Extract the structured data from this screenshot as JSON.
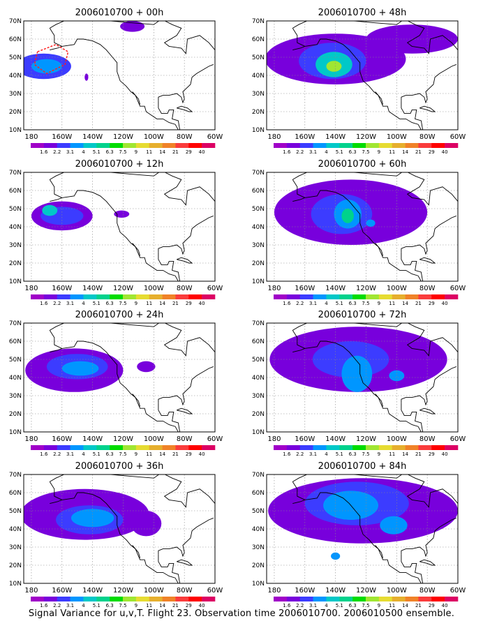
{
  "caption": "Signal Variance for u,v,T. Flight 23. Observation time 2006010700. 2006010500 ensemble.",
  "map": {
    "lat_ticks": [
      "10N",
      "20N",
      "30N",
      "40N",
      "50N",
      "60N",
      "70N"
    ],
    "lon_ticks": [
      "180",
      "160W",
      "140W",
      "120W",
      "100W",
      "80W",
      "60W"
    ],
    "lat_range": [
      10,
      70
    ],
    "lon_range": [
      -185,
      -60
    ]
  },
  "colorbar": {
    "labels": [
      "1.6",
      "2.2",
      "3.1",
      "4",
      "5.1",
      "6.3",
      "7.5",
      "9",
      "11",
      "14",
      "21",
      "29",
      "40"
    ],
    "colors": [
      "#a000c8",
      "#7800dc",
      "#3c3cff",
      "#0096ff",
      "#00c8c8",
      "#00d28c",
      "#00dc00",
      "#a0e632",
      "#e6dc32",
      "#e6af2d",
      "#f08228",
      "#fa3c3c",
      "#ff0000",
      "#dc0064"
    ]
  },
  "panels": [
    {
      "title": "2006010700 + 00h",
      "blobs": [
        {
          "lon": -172,
          "lat": 45,
          "rlon": 18,
          "rlat": 7,
          "level": 2
        },
        {
          "lon": -170,
          "lat": 45,
          "rlon": 10,
          "rlat": 4,
          "level": 3
        },
        {
          "lon": -114,
          "lat": 67,
          "rlon": 8,
          "rlat": 3,
          "level": 1
        },
        {
          "lon": -144,
          "lat": 39,
          "rlon": 1.2,
          "rlat": 2,
          "level": 1
        }
      ],
      "flight": true
    },
    {
      "title": "2006010700 + 48h",
      "blobs": [
        {
          "lon": -140,
          "lat": 49,
          "rlon": 46,
          "rlat": 14,
          "level": 1
        },
        {
          "lon": -90,
          "lat": 60,
          "rlon": 30,
          "rlat": 8,
          "level": 1
        },
        {
          "lon": -142,
          "lat": 48,
          "rlon": 22,
          "rlat": 10,
          "level": 2
        },
        {
          "lon": -141,
          "lat": 46,
          "rlon": 12,
          "rlat": 7,
          "level": 4
        },
        {
          "lon": -141,
          "lat": 45,
          "rlon": 5,
          "rlat": 3,
          "level": 7
        }
      ]
    },
    {
      "title": "2006010700 + 12h",
      "blobs": [
        {
          "lon": -160,
          "lat": 46,
          "rlon": 20,
          "rlat": 8,
          "level": 1
        },
        {
          "lon": -160,
          "lat": 46,
          "rlon": 14,
          "rlat": 5,
          "level": 2
        },
        {
          "lon": -168,
          "lat": 49,
          "rlon": 5,
          "rlat": 3,
          "level": 4
        },
        {
          "lon": -121,
          "lat": 47,
          "rlon": 5,
          "rlat": 2,
          "level": 1
        }
      ]
    },
    {
      "title": "2006010700 + 60h",
      "blobs": [
        {
          "lon": -130,
          "lat": 48,
          "rlon": 50,
          "rlat": 18,
          "level": 1
        },
        {
          "lon": -136,
          "lat": 47,
          "rlon": 20,
          "rlat": 11,
          "level": 2
        },
        {
          "lon": -132,
          "lat": 47,
          "rlon": 9,
          "rlat": 8,
          "level": 3
        },
        {
          "lon": -132,
          "lat": 46,
          "rlon": 4,
          "rlat": 4,
          "level": 5
        },
        {
          "lon": -117,
          "lat": 42,
          "rlon": 3,
          "rlat": 2,
          "level": 3
        }
      ]
    },
    {
      "title": "2006010700 + 24h",
      "blobs": [
        {
          "lon": -152,
          "lat": 44,
          "rlon": 32,
          "rlat": 12,
          "level": 1
        },
        {
          "lon": -150,
          "lat": 46,
          "rlon": 20,
          "rlat": 7,
          "level": 2
        },
        {
          "lon": -148,
          "lat": 45,
          "rlon": 12,
          "rlat": 4,
          "level": 3
        },
        {
          "lon": -105,
          "lat": 46,
          "rlon": 6,
          "rlat": 3,
          "level": 1
        }
      ]
    },
    {
      "title": "2006010700 + 72h",
      "blobs": [
        {
          "lon": -125,
          "lat": 50,
          "rlon": 58,
          "rlat": 18,
          "level": 1
        },
        {
          "lon": -130,
          "lat": 50,
          "rlon": 25,
          "rlat": 10,
          "level": 2
        },
        {
          "lon": -126,
          "lat": 42,
          "rlon": 10,
          "rlat": 10,
          "level": 3
        },
        {
          "lon": -100,
          "lat": 41,
          "rlon": 5,
          "rlat": 3,
          "level": 3
        }
      ]
    },
    {
      "title": "2006010700 + 36h",
      "blobs": [
        {
          "lon": -145,
          "lat": 48,
          "rlon": 42,
          "rlat": 14,
          "level": 1
        },
        {
          "lon": -142,
          "lat": 45,
          "rlon": 22,
          "rlat": 8,
          "level": 2
        },
        {
          "lon": -140,
          "lat": 46,
          "rlon": 14,
          "rlat": 5,
          "level": 3
        },
        {
          "lon": -105,
          "lat": 43,
          "rlon": 10,
          "rlat": 7,
          "level": 1
        }
      ]
    },
    {
      "title": "2006010700 + 84h",
      "blobs": [
        {
          "lon": -122,
          "lat": 50,
          "rlon": 62,
          "rlat": 18,
          "level": 1
        },
        {
          "lon": -126,
          "lat": 54,
          "rlon": 34,
          "rlat": 12,
          "level": 2
        },
        {
          "lon": -130,
          "lat": 53,
          "rlon": 18,
          "rlat": 8,
          "level": 3
        },
        {
          "lon": -102,
          "lat": 42,
          "rlon": 9,
          "rlat": 5,
          "level": 3
        },
        {
          "lon": -140,
          "lat": 25,
          "rlon": 3,
          "rlat": 2,
          "level": 3
        }
      ]
    }
  ]
}
